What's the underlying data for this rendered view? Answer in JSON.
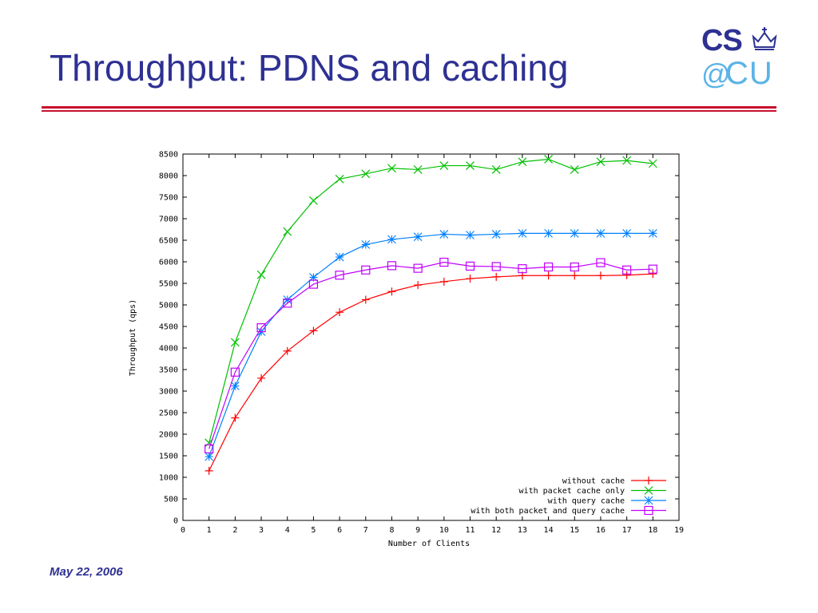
{
  "slide": {
    "title": "Throughput: PDNS and caching",
    "footer_date": "May 22, 2006"
  },
  "logo": {
    "line1": "CS",
    "at": "@",
    "line2": "CU",
    "crown_icon": "crown-icon",
    "colors": {
      "primary": "#2e3192",
      "secondary": "#5bb3e6"
    }
  },
  "accent_rule_color": "#c8102e",
  "chart_data": {
    "type": "line",
    "xlabel": "Number of Clients",
    "ylabel": "Throughput (qps)",
    "xlim": [
      0,
      19
    ],
    "ylim": [
      0,
      8500
    ],
    "xticks": [
      0,
      1,
      2,
      3,
      4,
      5,
      6,
      7,
      8,
      9,
      10,
      11,
      12,
      13,
      14,
      15,
      16,
      17,
      18,
      19
    ],
    "yticks": [
      0,
      500,
      1000,
      1500,
      2000,
      2500,
      3000,
      3500,
      4000,
      4500,
      5000,
      5500,
      6000,
      6500,
      7000,
      7500,
      8000,
      8500
    ],
    "legend_position": "bottom-right",
    "grid": false,
    "x": [
      1,
      2,
      3,
      4,
      5,
      6,
      7,
      8,
      9,
      10,
      11,
      12,
      13,
      14,
      15,
      16,
      17,
      18
    ],
    "series": [
      {
        "name": "without cache",
        "color": "#ff0000",
        "marker": "plus",
        "values": [
          1150,
          2380,
          3300,
          3930,
          4400,
          4830,
          5120,
          5310,
          5460,
          5540,
          5610,
          5650,
          5680,
          5680,
          5680,
          5680,
          5690,
          5720
        ]
      },
      {
        "name": "with packet cache only",
        "color": "#00c000",
        "marker": "x",
        "values": [
          1800,
          4130,
          5700,
          6700,
          7420,
          7920,
          8040,
          8170,
          8140,
          8230,
          8230,
          8140,
          8320,
          8380,
          8140,
          8320,
          8350,
          8280
        ]
      },
      {
        "name": "with query cache",
        "color": "#0080ff",
        "marker": "star",
        "values": [
          1480,
          3120,
          4380,
          5120,
          5640,
          6110,
          6400,
          6520,
          6580,
          6640,
          6620,
          6640,
          6660,
          6660,
          6660,
          6660,
          6660,
          6660
        ]
      },
      {
        "name": "with both packet and query cache",
        "color": "#c000ff",
        "marker": "square",
        "values": [
          1660,
          3440,
          4470,
          5040,
          5480,
          5690,
          5810,
          5910,
          5850,
          5990,
          5900,
          5890,
          5840,
          5880,
          5880,
          5980,
          5810,
          5830
        ]
      }
    ]
  }
}
